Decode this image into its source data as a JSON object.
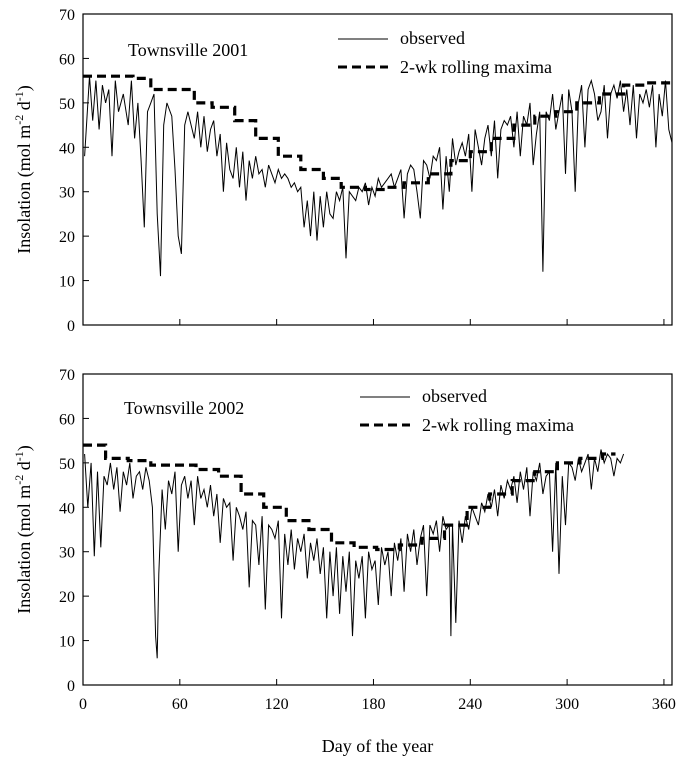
{
  "chart_data": [
    {
      "type": "line",
      "title": "Townsville 2001",
      "xlabel": "",
      "ylabel": "Insolation (mol m-2 d-1)",
      "ylabel_parts": {
        "main": "Insolation (mol m",
        "sup1": "-2",
        "mid": " d",
        "sup2": "-1",
        "end": ")"
      },
      "xlim": [
        0,
        365
      ],
      "ylim": [
        0,
        70
      ],
      "yticks": [
        0,
        10,
        20,
        30,
        40,
        50,
        60,
        70
      ],
      "xticks": [
        0,
        60,
        120,
        180,
        240,
        300,
        360
      ],
      "legend": {
        "position": "top-center",
        "entries": [
          {
            "label": "observed",
            "style": "thin-solid"
          },
          {
            "label": "2-wk rolling maxima",
            "style": "thick-dashed"
          }
        ]
      },
      "series": [
        {
          "name": "observed",
          "x": [
            1,
            4,
            6,
            8,
            10,
            12,
            14,
            16,
            18,
            20,
            22,
            25,
            28,
            30,
            32,
            34,
            36,
            38,
            40,
            42,
            44,
            46,
            48,
            50,
            52,
            55,
            57,
            59,
            61,
            63,
            65,
            67,
            69,
            71,
            73,
            75,
            77,
            79,
            81,
            83,
            85,
            87,
            89,
            91,
            93,
            95,
            97,
            99,
            101,
            103,
            105,
            107,
            109,
            111,
            113,
            115,
            117,
            119,
            121,
            123,
            125,
            127,
            129,
            131,
            133,
            135,
            137,
            139,
            141,
            143,
            145,
            147,
            149,
            151,
            153,
            155,
            157,
            159,
            161,
            163,
            165,
            167,
            169,
            171,
            173,
            175,
            177,
            179,
            181,
            183,
            185,
            187,
            189,
            191,
            193,
            195,
            197,
            199,
            201,
            203,
            205,
            207,
            209,
            211,
            213,
            215,
            217,
            219,
            221,
            223,
            225,
            227,
            229,
            231,
            233,
            235,
            237,
            239,
            241,
            243,
            245,
            247,
            249,
            251,
            253,
            255,
            257,
            259,
            261,
            263,
            265,
            267,
            269,
            271,
            273,
            275,
            277,
            279,
            281,
            283,
            285,
            287,
            289,
            291,
            293,
            295,
            297,
            299,
            301,
            303,
            305,
            307,
            309,
            311,
            313,
            315,
            317,
            319,
            321,
            323,
            325,
            327,
            329,
            331,
            333,
            335,
            337,
            339,
            341,
            343,
            345,
            347,
            349,
            351,
            353,
            355,
            357,
            359,
            361,
            363,
            365
          ],
          "y": [
            38,
            56,
            46,
            55,
            44,
            54,
            50,
            53,
            38,
            55,
            48,
            52,
            45,
            55,
            42,
            50,
            37,
            22,
            48,
            50,
            52,
            25,
            11,
            45,
            50,
            47,
            35,
            20,
            16,
            45,
            48,
            45,
            42,
            48,
            40,
            47,
            39,
            44,
            46,
            38,
            43,
            30,
            41,
            35,
            33,
            40,
            31,
            39,
            28,
            37,
            33,
            38,
            34,
            35,
            31,
            36,
            34,
            32,
            35,
            33,
            34,
            33,
            31,
            32,
            30,
            31,
            22,
            28,
            20,
            30,
            19,
            29,
            22,
            30,
            25,
            24,
            30,
            28,
            31,
            15,
            30,
            29,
            28,
            31,
            30,
            32,
            27,
            31,
            29,
            33,
            31,
            32,
            33,
            34,
            31,
            33,
            35,
            24,
            34,
            36,
            35,
            30,
            24,
            37,
            36,
            33,
            38,
            37,
            40,
            26,
            38,
            30,
            42,
            36,
            39,
            41,
            38,
            43,
            30,
            44,
            40,
            36,
            42,
            45,
            38,
            46,
            33,
            44,
            46,
            45,
            47,
            40,
            48,
            38,
            47,
            45,
            50,
            36,
            43,
            48,
            12,
            48,
            46,
            52,
            44,
            48,
            52,
            34,
            53,
            48,
            30,
            50,
            54,
            40,
            53,
            55,
            52,
            46,
            48,
            54,
            42,
            52,
            54,
            51,
            55,
            48,
            53,
            45,
            54,
            42,
            52,
            50,
            53,
            49,
            54,
            40,
            52,
            47,
            55,
            44,
            41
          ]
        },
        {
          "name": "2-wk rolling maxima",
          "x": [
            0,
            3,
            3,
            17,
            17,
            31,
            31,
            42,
            42,
            55,
            55,
            69,
            69,
            80,
            80,
            94,
            94,
            107,
            107,
            121,
            121,
            135,
            135,
            149,
            149,
            160,
            160,
            175,
            175,
            188,
            188,
            199,
            199,
            214,
            214,
            228,
            228,
            240,
            240,
            253,
            253,
            267,
            267,
            280,
            280,
            293,
            293,
            306,
            306,
            320,
            320,
            335,
            335,
            349,
            349,
            365
          ],
          "y": [
            56,
            56,
            56,
            56,
            56,
            56,
            55.5,
            55.5,
            53,
            53,
            53,
            53,
            50,
            50,
            49,
            49,
            46,
            46,
            42,
            42,
            38,
            38,
            35,
            35,
            33,
            33,
            31,
            31,
            30.5,
            30.5,
            31,
            31,
            32,
            32,
            34,
            34,
            37,
            37,
            39,
            39,
            42,
            42,
            45,
            45,
            47,
            47,
            48,
            48,
            50,
            50,
            52,
            52,
            54,
            54,
            54.5,
            54.5
          ]
        }
      ]
    },
    {
      "type": "line",
      "title": "Townsville 2002",
      "xlabel": "Day of the year",
      "ylabel": "Insolation (mol m-2 d-1)",
      "ylabel_parts": {
        "main": "Insolation (mol m",
        "sup1": "-2",
        "mid": " d",
        "sup2": "-1",
        "end": ")"
      },
      "xlim": [
        0,
        365
      ],
      "ylim": [
        0,
        70
      ],
      "yticks": [
        0,
        10,
        20,
        30,
        40,
        50,
        60,
        70
      ],
      "xticks": [
        0,
        60,
        120,
        180,
        240,
        300,
        360
      ],
      "legend": {
        "position": "top-center",
        "entries": [
          {
            "label": "observed",
            "style": "thin-solid"
          },
          {
            "label": "2-wk rolling maxima",
            "style": "thick-dashed"
          }
        ]
      },
      "series": [
        {
          "name": "observed",
          "x": [
            1,
            3,
            5,
            7,
            9,
            11,
            13,
            15,
            17,
            19,
            21,
            23,
            25,
            27,
            29,
            31,
            33,
            35,
            37,
            39,
            41,
            43,
            45,
            46,
            47,
            49,
            51,
            53,
            55,
            57,
            59,
            61,
            63,
            65,
            67,
            69,
            71,
            73,
            75,
            77,
            79,
            81,
            83,
            85,
            87,
            89,
            91,
            93,
            95,
            97,
            99,
            101,
            103,
            105,
            107,
            109,
            111,
            113,
            115,
            117,
            119,
            121,
            123,
            125,
            127,
            129,
            131,
            133,
            135,
            137,
            139,
            141,
            143,
            145,
            147,
            149,
            151,
            153,
            155,
            157,
            159,
            161,
            163,
            165,
            167,
            169,
            171,
            173,
            175,
            177,
            179,
            181,
            183,
            185,
            187,
            189,
            191,
            193,
            195,
            197,
            199,
            201,
            203,
            205,
            207,
            209,
            211,
            213,
            215,
            217,
            219,
            221,
            223,
            225,
            227,
            228,
            229,
            231,
            233,
            235,
            237,
            239,
            241,
            243,
            245,
            247,
            249,
            251,
            253,
            255,
            257,
            259,
            261,
            263,
            265,
            267,
            269,
            271,
            273,
            275,
            277,
            279,
            281,
            283,
            285,
            287,
            289,
            291,
            293,
            295,
            297,
            299,
            301,
            303,
            305,
            307,
            309,
            311,
            313,
            315,
            317,
            319,
            321,
            323,
            325,
            327,
            329,
            331,
            333,
            335
          ],
          "y": [
            52,
            40,
            50,
            29,
            48,
            31,
            47,
            45,
            50,
            44,
            49,
            39,
            48,
            45,
            50,
            42,
            47,
            48,
            44,
            49,
            46,
            40,
            11,
            6,
            25,
            44,
            35,
            46,
            43,
            48,
            30,
            45,
            47,
            42,
            46,
            36,
            47,
            42,
            44,
            40,
            45,
            38,
            43,
            32,
            42,
            40,
            41,
            28,
            40,
            38,
            35,
            39,
            22,
            37,
            36,
            27,
            38,
            17,
            36,
            35,
            33,
            37,
            15,
            34,
            27,
            35,
            26,
            33,
            30,
            34,
            24,
            32,
            28,
            33,
            25,
            31,
            15,
            30,
            20,
            31,
            16,
            29,
            21,
            30,
            11,
            28,
            24,
            29,
            15,
            30,
            26,
            28,
            18,
            31,
            27,
            30,
            20,
            32,
            28,
            33,
            21,
            34,
            30,
            35,
            27,
            33,
            36,
            20,
            36,
            34,
            37,
            30,
            38,
            35,
            36,
            11,
            36,
            14,
            37,
            32,
            38,
            35,
            40,
            38,
            36,
            41,
            39,
            43,
            40,
            44,
            38,
            45,
            42,
            46,
            44,
            47,
            41,
            48,
            44,
            49,
            38,
            48,
            46,
            50,
            43,
            47,
            48,
            30,
            50,
            25,
            47,
            36,
            50,
            49,
            46,
            51,
            48,
            50,
            52,
            44,
            51,
            48,
            53,
            50,
            52,
            51,
            47,
            51,
            50,
            52
          ]
        },
        {
          "name": "2-wk rolling maxima",
          "x": [
            0,
            3,
            3,
            14,
            14,
            28,
            28,
            42,
            42,
            56,
            56,
            70,
            70,
            84,
            84,
            98,
            98,
            112,
            112,
            126,
            126,
            140,
            140,
            154,
            154,
            168,
            168,
            182,
            182,
            196,
            196,
            210,
            210,
            224,
            224,
            238,
            238,
            252,
            252,
            266,
            266,
            280,
            280,
            294,
            294,
            308,
            308,
            322,
            322,
            330
          ],
          "y": [
            54,
            54,
            54,
            54,
            51,
            51,
            50.5,
            50.5,
            49.5,
            49.5,
            49.5,
            49.5,
            48.5,
            48.5,
            47,
            47,
            43,
            43,
            40,
            40,
            37,
            37,
            35,
            35,
            32,
            32,
            31,
            31,
            30.5,
            30.5,
            31.5,
            31.5,
            33,
            33,
            36,
            36,
            40,
            40,
            43,
            43,
            46,
            46,
            48,
            48,
            50,
            50,
            51,
            51,
            52,
            52
          ]
        }
      ]
    }
  ]
}
